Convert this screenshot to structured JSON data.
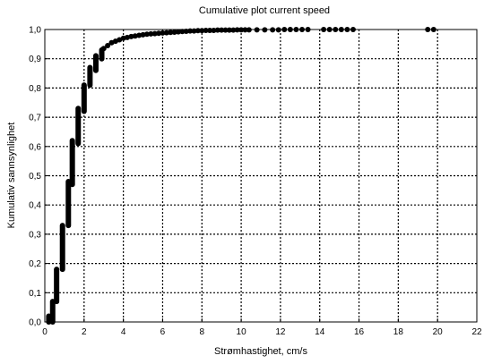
{
  "chart_data": {
    "type": "scatter",
    "title": "Cumulative plot current speed",
    "xlabel": "Strømhastighet, cm/s",
    "ylabel": "Kumulativ sannsynlighet",
    "xlim": [
      0,
      22
    ],
    "ylim": [
      0,
      1
    ],
    "x_ticks": [
      "0",
      "2",
      "4",
      "6",
      "8",
      "10",
      "12",
      "14",
      "16",
      "18",
      "20",
      "22"
    ],
    "y_ticks": [
      "0,0",
      "0,1",
      "0,2",
      "0,3",
      "0,4",
      "0,5",
      "0,6",
      "0,7",
      "0,8",
      "0,9",
      "1,0"
    ],
    "grid": true,
    "series": [
      {
        "marker_color": "#000000",
        "segments": [
          {
            "x": 0.2,
            "y_from": 0.0,
            "y_to": 0.02
          },
          {
            "x": 0.4,
            "y_from": 0.0,
            "y_to": 0.07
          },
          {
            "x": 0.6,
            "y_from": 0.07,
            "y_to": 0.18
          },
          {
            "x": 0.9,
            "y_from": 0.18,
            "y_to": 0.33
          },
          {
            "x": 1.2,
            "y_from": 0.33,
            "y_to": 0.48
          },
          {
            "x": 1.4,
            "y_from": 0.47,
            "y_to": 0.62
          },
          {
            "x": 1.7,
            "y_from": 0.61,
            "y_to": 0.73
          },
          {
            "x": 2.0,
            "y_from": 0.72,
            "y_to": 0.81
          },
          {
            "x": 2.3,
            "y_from": 0.81,
            "y_to": 0.87
          },
          {
            "x": 2.6,
            "y_from": 0.86,
            "y_to": 0.91
          },
          {
            "x": 2.9,
            "y_from": 0.9,
            "y_to": 0.93
          }
        ],
        "points": [
          {
            "x": 3.0,
            "y": 0.935
          },
          {
            "x": 3.2,
            "y": 0.945
          },
          {
            "x": 3.4,
            "y": 0.955
          },
          {
            "x": 3.6,
            "y": 0.96
          },
          {
            "x": 3.8,
            "y": 0.965
          },
          {
            "x": 4.0,
            "y": 0.97
          },
          {
            "x": 4.2,
            "y": 0.973
          },
          {
            "x": 4.4,
            "y": 0.976
          },
          {
            "x": 4.6,
            "y": 0.978
          },
          {
            "x": 4.8,
            "y": 0.98
          },
          {
            "x": 5.0,
            "y": 0.982
          },
          {
            "x": 5.2,
            "y": 0.984
          },
          {
            "x": 5.4,
            "y": 0.985
          },
          {
            "x": 5.6,
            "y": 0.986
          },
          {
            "x": 5.8,
            "y": 0.987
          },
          {
            "x": 6.0,
            "y": 0.988
          },
          {
            "x": 6.2,
            "y": 0.989
          },
          {
            "x": 6.4,
            "y": 0.99
          },
          {
            "x": 6.6,
            "y": 0.991
          },
          {
            "x": 6.8,
            "y": 0.992
          },
          {
            "x": 7.0,
            "y": 0.993
          },
          {
            "x": 7.2,
            "y": 0.994
          },
          {
            "x": 7.4,
            "y": 0.995
          },
          {
            "x": 7.6,
            "y": 0.995
          },
          {
            "x": 7.8,
            "y": 0.996
          },
          {
            "x": 8.0,
            "y": 0.996
          },
          {
            "x": 8.2,
            "y": 0.997
          },
          {
            "x": 8.4,
            "y": 0.997
          },
          {
            "x": 8.6,
            "y": 0.997
          },
          {
            "x": 8.8,
            "y": 0.998
          },
          {
            "x": 9.0,
            "y": 0.998
          },
          {
            "x": 9.2,
            "y": 0.998
          },
          {
            "x": 9.4,
            "y": 0.998
          },
          {
            "x": 9.6,
            "y": 0.998
          },
          {
            "x": 9.8,
            "y": 0.999
          },
          {
            "x": 10.0,
            "y": 0.999
          },
          {
            "x": 10.2,
            "y": 0.999
          },
          {
            "x": 10.4,
            "y": 0.999
          },
          {
            "x": 10.8,
            "y": 0.999
          },
          {
            "x": 11.2,
            "y": 0.999
          },
          {
            "x": 11.6,
            "y": 0.999
          },
          {
            "x": 11.9,
            "y": 0.999
          },
          {
            "x": 12.2,
            "y": 1.0
          },
          {
            "x": 12.5,
            "y": 1.0
          },
          {
            "x": 12.8,
            "y": 1.0
          },
          {
            "x": 13.1,
            "y": 1.0
          },
          {
            "x": 13.4,
            "y": 1.0
          },
          {
            "x": 14.2,
            "y": 1.0
          },
          {
            "x": 14.5,
            "y": 1.0
          },
          {
            "x": 14.8,
            "y": 1.0
          },
          {
            "x": 15.1,
            "y": 1.0
          },
          {
            "x": 15.4,
            "y": 1.0
          },
          {
            "x": 15.7,
            "y": 1.0
          },
          {
            "x": 19.5,
            "y": 1.0
          },
          {
            "x": 19.8,
            "y": 1.0
          }
        ]
      }
    ]
  }
}
